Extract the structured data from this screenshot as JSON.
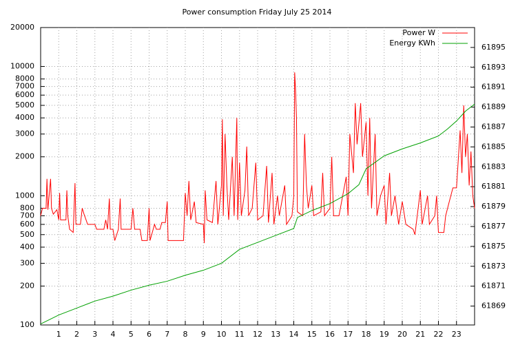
{
  "chart_data": {
    "type": "line",
    "title": "Power consumption Friday July 25 2014",
    "xlim": [
      0,
      24
    ],
    "xticks": [
      1,
      2,
      3,
      4,
      5,
      6,
      7,
      8,
      9,
      10,
      11,
      12,
      13,
      14,
      15,
      16,
      17,
      18,
      19,
      20,
      21,
      22,
      23
    ],
    "ylim": [
      100,
      20000
    ],
    "yscale": "log",
    "yticks": [
      100,
      200,
      300,
      400,
      500,
      600,
      700,
      800,
      1000,
      2000,
      3000,
      4000,
      5000,
      6000,
      7000,
      8000,
      10000,
      20000
    ],
    "y2lim": [
      61867.1,
      61897.0
    ],
    "y2ticks": [
      61869,
      61871,
      61873,
      61875,
      61877,
      61879,
      61881,
      61883,
      61885,
      61887,
      61889,
      61891,
      61893,
      61895
    ],
    "grid": true,
    "legend": "top-right",
    "series": [
      {
        "name": "Power W",
        "color": "#ff0000",
        "x": [
          0,
          0.1,
          0.3,
          0.35,
          0.4,
          0.55,
          0.6,
          0.7,
          0.9,
          1.0,
          1.05,
          1.1,
          1.4,
          1.45,
          1.5,
          1.6,
          1.8,
          1.9,
          1.95,
          2.2,
          2.3,
          2.4,
          2.6,
          3.0,
          3.1,
          3.5,
          3.6,
          3.7,
          3.8,
          3.85,
          4.0,
          4.1,
          4.3,
          4.4,
          4.45,
          5.0,
          5.1,
          5.2,
          5.5,
          5.6,
          5.9,
          6.0,
          6.05,
          6.3,
          6.4,
          6.6,
          6.7,
          6.9,
          7.0,
          7.05,
          7.9,
          8.0,
          8.1,
          8.2,
          8.3,
          8.5,
          8.6,
          9.0,
          9.05,
          9.1,
          9.2,
          9.5,
          9.7,
          9.8,
          10.0,
          10.05,
          10.1,
          10.2,
          10.3,
          10.4,
          10.6,
          10.7,
          10.85,
          10.9,
          11.0,
          11.1,
          11.3,
          11.4,
          11.5,
          11.7,
          11.9,
          12.0,
          12.3,
          12.5,
          12.6,
          12.8,
          12.9,
          13.1,
          13.2,
          13.5,
          13.6,
          13.9,
          14.0,
          14.05,
          14.1,
          14.15,
          14.2,
          14.5,
          14.6,
          14.7,
          14.8,
          15.0,
          15.1,
          15.5,
          15.6,
          15.7,
          16.0,
          16.1,
          16.2,
          16.5,
          16.9,
          17.0,
          17.1,
          17.3,
          17.4,
          17.5,
          17.7,
          17.8,
          18.0,
          18.1,
          18.2,
          18.3,
          18.5,
          18.6,
          18.8,
          19.0,
          19.1,
          19.3,
          19.4,
          19.6,
          19.8,
          20.0,
          20.2,
          20.6,
          20.7,
          21.0,
          21.1,
          21.4,
          21.5,
          21.8,
          21.9,
          22.0,
          22.3,
          22.4,
          22.6,
          22.8,
          23.0,
          23.2,
          23.3,
          23.4,
          23.5,
          23.6,
          23.7,
          23.8,
          23.9,
          24.0
        ],
        "values": [
          700,
          800,
          800,
          1350,
          780,
          1350,
          800,
          720,
          780,
          650,
          1050,
          650,
          650,
          1100,
          700,
          550,
          520,
          1250,
          600,
          600,
          800,
          720,
          600,
          600,
          550,
          550,
          650,
          550,
          950,
          550,
          550,
          450,
          550,
          950,
          550,
          550,
          800,
          550,
          550,
          450,
          450,
          800,
          450,
          600,
          550,
          550,
          620,
          620,
          900,
          450,
          450,
          1050,
          700,
          1300,
          650,
          900,
          620,
          600,
          430,
          1100,
          650,
          620,
          1300,
          600,
          1200,
          3900,
          700,
          3000,
          1200,
          650,
          2000,
          700,
          4000,
          650,
          1800,
          700,
          1100,
          2400,
          700,
          800,
          1800,
          650,
          700,
          1700,
          620,
          1500,
          600,
          1000,
          700,
          1200,
          600,
          700,
          1000,
          9000,
          6500,
          4000,
          750,
          700,
          3000,
          1200,
          800,
          1200,
          700,
          750,
          1500,
          700,
          800,
          2000,
          700,
          700,
          1400,
          700,
          3000,
          1500,
          5200,
          2500,
          5200,
          2000,
          3700,
          1000,
          4000,
          800,
          3000,
          700,
          1000,
          1200,
          600,
          1500,
          700,
          1000,
          600,
          900,
          600,
          550,
          500,
          1100,
          600,
          1000,
          600,
          700,
          1000,
          520,
          520,
          700,
          900,
          1150,
          1150,
          3200,
          1500,
          5000,
          2000,
          3000,
          1200,
          2200,
          1000,
          800
        ]
      },
      {
        "name": "Energy KWh",
        "color": "#00a000",
        "axis": "y2",
        "x": [
          0,
          1,
          2,
          3,
          4,
          5,
          6,
          7,
          8,
          9,
          10,
          11,
          12,
          13,
          14,
          14.2,
          15,
          16,
          17,
          17.6,
          18,
          19,
          20,
          21,
          22,
          22.5,
          23,
          23.5,
          24
        ],
        "values": [
          61867.2,
          61868.1,
          61868.8,
          61869.5,
          61870.0,
          61870.6,
          61871.1,
          61871.5,
          61872.1,
          61872.6,
          61873.3,
          61874.7,
          61875.4,
          61876.1,
          61876.8,
          61877.9,
          61878.6,
          61879.3,
          61880.3,
          61881.2,
          61882.8,
          61884.1,
          61884.8,
          61885.4,
          61886.1,
          61886.8,
          61887.6,
          61888.6,
          61889.3
        ]
      }
    ]
  }
}
